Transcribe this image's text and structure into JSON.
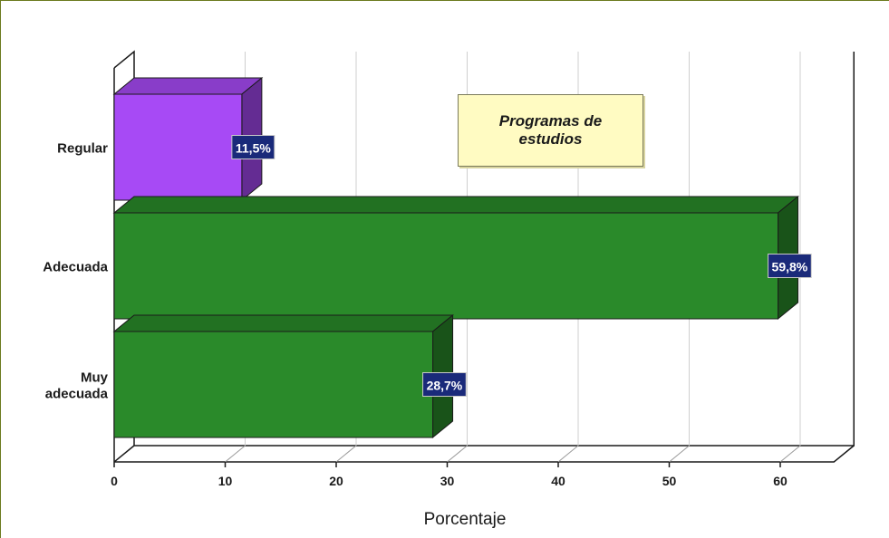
{
  "chart_data": {
    "type": "bar",
    "orientation": "horizontal",
    "title": "Programas de estudios",
    "xlabel": "Porcentaje",
    "ylabel": "",
    "xlim": [
      0,
      65
    ],
    "xticks": [
      0,
      10,
      20,
      30,
      40,
      50,
      60
    ],
    "grid": true,
    "categories": [
      "Regular",
      "Adecuada",
      "Muy adecuada"
    ],
    "values": [
      11.5,
      59.8,
      28.7
    ],
    "data_labels": [
      "11,5%",
      "59,8%",
      "28,7%"
    ],
    "colors": [
      "#a74af5",
      "#2a8a2a",
      "#2a8a2a"
    ],
    "label_bg_color": "#1a2a7a"
  },
  "category_lines": [
    [
      "Regular"
    ],
    [
      "Adecuada"
    ],
    [
      "Muy",
      "adecuada"
    ]
  ]
}
